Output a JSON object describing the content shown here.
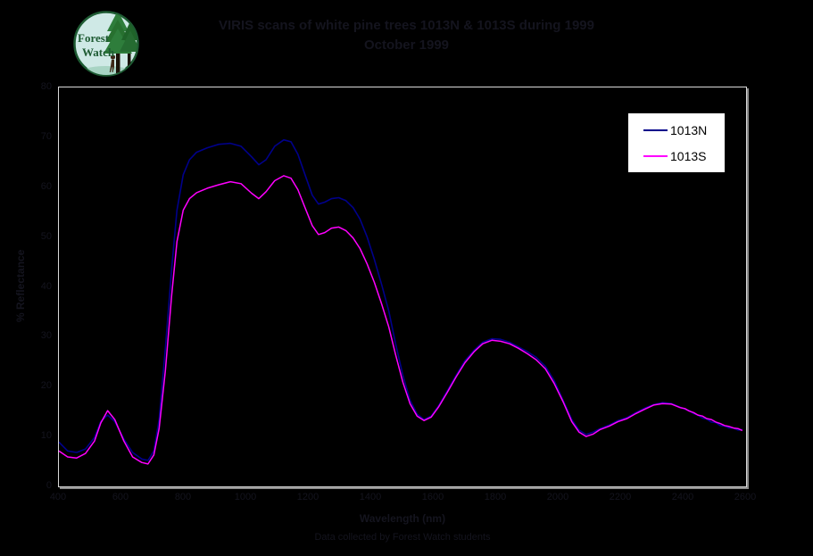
{
  "logo": {
    "line1": "Forest",
    "line2": "Watch"
  },
  "colors": {
    "background": "#000000",
    "faint_text": "#14141e",
    "plot_frame": "#d9d9d9",
    "plot_shadow": "#8c8c8c",
    "legend_background": "#ffffff",
    "legend_text": "#000000",
    "series_1013N": "#00008b",
    "series_1013S": "#ff00ff",
    "logo_green": "#1e5b33",
    "logo_circle_fill": "#cfe9e6"
  },
  "chart_data": {
    "type": "line",
    "title": "VIRIS scans of white pine trees 1013N & 1013S during 1999",
    "subtitle": "October 1999",
    "xlabel": "Wavelength (nm)",
    "ylabel": "% Reflectance",
    "caption": "Data collected by Forest Watch students",
    "xlim": [
      400,
      2600
    ],
    "ylim": [
      0,
      80
    ],
    "x_ticks": [
      400,
      600,
      800,
      1000,
      1200,
      1400,
      1600,
      1800,
      2000,
      2200,
      2400,
      2600
    ],
    "y_ticks": [
      80,
      70,
      60,
      50,
      40,
      30,
      20,
      10,
      0
    ],
    "grid": false,
    "legend_position": "top-right",
    "plot_background": "#000000",
    "series": [
      {
        "name": "1013N",
        "color": "#00008b",
        "width": 1.6,
        "points": [
          [
            400,
            8.9
          ],
          [
            428,
            7.1
          ],
          [
            457,
            6.8
          ],
          [
            485,
            7.5
          ],
          [
            514,
            9.8
          ],
          [
            534,
            13.0
          ],
          [
            556,
            14.3
          ],
          [
            579,
            13.0
          ],
          [
            608,
            9.5
          ],
          [
            636,
            6.8
          ],
          [
            665,
            5.5
          ],
          [
            685,
            5.2
          ],
          [
            704,
            7.1
          ],
          [
            721,
            13.4
          ],
          [
            741,
            27.7
          ],
          [
            761,
            43.8
          ],
          [
            778,
            55.4
          ],
          [
            798,
            62.5
          ],
          [
            818,
            65.5
          ],
          [
            841,
            67.0
          ],
          [
            875,
            67.9
          ],
          [
            912,
            68.6
          ],
          [
            949,
            68.8
          ],
          [
            983,
            68.2
          ],
          [
            1017,
            66.1
          ],
          [
            1040,
            64.5
          ],
          [
            1063,
            65.5
          ],
          [
            1091,
            68.2
          ],
          [
            1120,
            69.5
          ],
          [
            1143,
            69.1
          ],
          [
            1165,
            66.6
          ],
          [
            1188,
            62.5
          ],
          [
            1211,
            58.4
          ],
          [
            1231,
            56.6
          ],
          [
            1251,
            57.0
          ],
          [
            1273,
            57.7
          ],
          [
            1296,
            57.9
          ],
          [
            1319,
            57.3
          ],
          [
            1342,
            55.9
          ],
          [
            1364,
            53.6
          ],
          [
            1387,
            50.0
          ],
          [
            1410,
            45.5
          ],
          [
            1433,
            40.5
          ],
          [
            1456,
            35.2
          ],
          [
            1478,
            28.6
          ],
          [
            1501,
            22.3
          ],
          [
            1524,
            17.3
          ],
          [
            1547,
            14.5
          ],
          [
            1569,
            13.4
          ],
          [
            1592,
            14.1
          ],
          [
            1615,
            16.1
          ],
          [
            1643,
            19.1
          ],
          [
            1672,
            22.3
          ],
          [
            1700,
            25.2
          ],
          [
            1729,
            27.3
          ],
          [
            1757,
            28.9
          ],
          [
            1786,
            29.6
          ],
          [
            1814,
            29.5
          ],
          [
            1843,
            28.9
          ],
          [
            1871,
            28.0
          ],
          [
            1900,
            27.0
          ],
          [
            1928,
            25.9
          ],
          [
            1957,
            24.1
          ],
          [
            1985,
            21.3
          ],
          [
            2014,
            17.3
          ],
          [
            2042,
            13.4
          ],
          [
            2065,
            11.3
          ],
          [
            2088,
            10.4
          ],
          [
            2111,
            10.9
          ],
          [
            2133,
            11.6
          ],
          [
            2162,
            12.3
          ],
          [
            2190,
            13.2
          ],
          [
            2219,
            13.8
          ],
          [
            2247,
            14.8
          ],
          [
            2276,
            15.7
          ],
          [
            2304,
            16.4
          ],
          [
            2332,
            16.8
          ],
          [
            2361,
            16.6
          ],
          [
            2389,
            15.9
          ],
          [
            2404,
            15.5
          ],
          [
            2418,
            15.2
          ],
          [
            2432,
            14.6
          ],
          [
            2446,
            14.3
          ],
          [
            2460,
            13.7
          ],
          [
            2474,
            13.5
          ],
          [
            2489,
            12.9
          ],
          [
            2503,
            12.8
          ],
          [
            2517,
            12.2
          ],
          [
            2531,
            12.1
          ],
          [
            2546,
            11.7
          ],
          [
            2560,
            11.7
          ],
          [
            2574,
            11.3
          ],
          [
            2588,
            11.4
          ]
        ]
      },
      {
        "name": "1013S",
        "color": "#ff00ff",
        "width": 1.5,
        "points": [
          [
            400,
            7.1
          ],
          [
            428,
            5.9
          ],
          [
            457,
            5.7
          ],
          [
            485,
            6.6
          ],
          [
            514,
            9.1
          ],
          [
            534,
            12.7
          ],
          [
            556,
            15.2
          ],
          [
            579,
            13.4
          ],
          [
            608,
            9.1
          ],
          [
            636,
            5.9
          ],
          [
            665,
            4.8
          ],
          [
            685,
            4.5
          ],
          [
            704,
            6.3
          ],
          [
            721,
            11.6
          ],
          [
            741,
            23.2
          ],
          [
            761,
            38.4
          ],
          [
            778,
            49.1
          ],
          [
            798,
            55.4
          ],
          [
            818,
            57.7
          ],
          [
            841,
            58.9
          ],
          [
            875,
            59.8
          ],
          [
            912,
            60.5
          ],
          [
            949,
            61.1
          ],
          [
            983,
            60.7
          ],
          [
            1017,
            58.8
          ],
          [
            1040,
            57.7
          ],
          [
            1063,
            59.1
          ],
          [
            1091,
            61.3
          ],
          [
            1120,
            62.3
          ],
          [
            1143,
            61.8
          ],
          [
            1165,
            59.5
          ],
          [
            1188,
            55.9
          ],
          [
            1211,
            52.3
          ],
          [
            1231,
            50.5
          ],
          [
            1251,
            50.9
          ],
          [
            1273,
            51.8
          ],
          [
            1296,
            52.0
          ],
          [
            1319,
            51.3
          ],
          [
            1342,
            49.8
          ],
          [
            1364,
            47.7
          ],
          [
            1387,
            44.6
          ],
          [
            1410,
            40.9
          ],
          [
            1433,
            36.6
          ],
          [
            1456,
            32.0
          ],
          [
            1478,
            26.4
          ],
          [
            1501,
            20.9
          ],
          [
            1524,
            16.6
          ],
          [
            1547,
            14.1
          ],
          [
            1569,
            13.2
          ],
          [
            1592,
            13.9
          ],
          [
            1615,
            15.9
          ],
          [
            1643,
            18.8
          ],
          [
            1672,
            22.0
          ],
          [
            1700,
            24.8
          ],
          [
            1729,
            27.0
          ],
          [
            1757,
            28.6
          ],
          [
            1786,
            29.3
          ],
          [
            1814,
            29.1
          ],
          [
            1843,
            28.6
          ],
          [
            1871,
            27.7
          ],
          [
            1900,
            26.6
          ],
          [
            1928,
            25.4
          ],
          [
            1957,
            23.6
          ],
          [
            1985,
            20.7
          ],
          [
            2014,
            17.0
          ],
          [
            2042,
            13.0
          ],
          [
            2065,
            10.9
          ],
          [
            2088,
            10.0
          ],
          [
            2111,
            10.5
          ],
          [
            2133,
            11.4
          ],
          [
            2162,
            12.1
          ],
          [
            2190,
            13.0
          ],
          [
            2219,
            13.6
          ],
          [
            2247,
            14.6
          ],
          [
            2276,
            15.5
          ],
          [
            2304,
            16.3
          ],
          [
            2332,
            16.6
          ],
          [
            2361,
            16.5
          ],
          [
            2389,
            15.8
          ],
          [
            2404,
            15.6
          ],
          [
            2418,
            15.1
          ],
          [
            2432,
            14.8
          ],
          [
            2446,
            14.3
          ],
          [
            2460,
            14.1
          ],
          [
            2474,
            13.6
          ],
          [
            2489,
            13.4
          ],
          [
            2503,
            12.9
          ],
          [
            2517,
            12.6
          ],
          [
            2531,
            12.2
          ],
          [
            2546,
            12.0
          ],
          [
            2560,
            11.7
          ],
          [
            2574,
            11.6
          ],
          [
            2588,
            11.2
          ]
        ]
      }
    ]
  }
}
